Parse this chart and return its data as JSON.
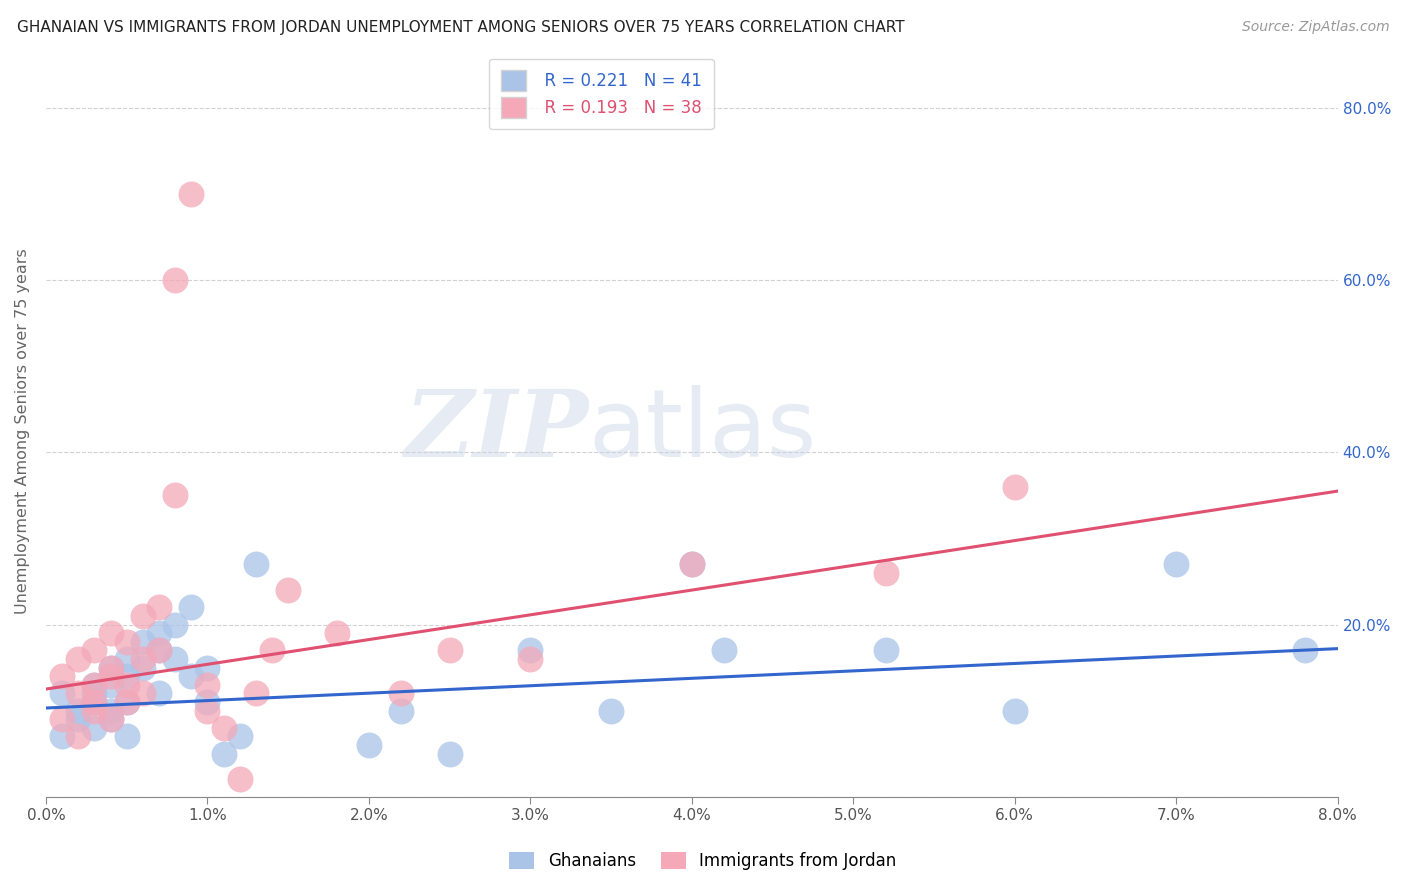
{
  "title": "GHANAIAN VS IMMIGRANTS FROM JORDAN UNEMPLOYMENT AMONG SENIORS OVER 75 YEARS CORRELATION CHART",
  "source": "Source: ZipAtlas.com",
  "ylabel": "Unemployment Among Seniors over 75 years",
  "x_min": 0.0,
  "x_max": 0.08,
  "y_min": 0.0,
  "y_max": 0.85,
  "x_ticks": [
    0.0,
    0.01,
    0.02,
    0.03,
    0.04,
    0.05,
    0.06,
    0.07,
    0.08
  ],
  "x_tick_labels": [
    "0.0%",
    "1.0%",
    "2.0%",
    "3.0%",
    "4.0%",
    "5.0%",
    "6.0%",
    "7.0%",
    "8.0%"
  ],
  "right_y_ticks": [
    0.2,
    0.4,
    0.6,
    0.8
  ],
  "right_y_tick_labels": [
    "20.0%",
    "40.0%",
    "60.0%",
    "80.0%"
  ],
  "ghanaian_color": "#aac4e8",
  "jordan_color": "#f4a8b8",
  "trendline_ghanaian": "#3366cc",
  "trendline_jordan": "#e05070",
  "legend_R_ghanaian": "R = 0.221",
  "legend_N_ghanaian": "N = 41",
  "legend_R_jordan": "R = 0.193",
  "legend_N_jordan": "N = 38",
  "watermark_zip": "ZIP",
  "watermark_atlas": "atlas",
  "background_color": "#ffffff",
  "ghanaian_x": [
    0.001,
    0.001,
    0.002,
    0.002,
    0.003,
    0.003,
    0.003,
    0.003,
    0.004,
    0.004,
    0.004,
    0.004,
    0.005,
    0.005,
    0.005,
    0.005,
    0.006,
    0.006,
    0.007,
    0.007,
    0.007,
    0.008,
    0.008,
    0.009,
    0.009,
    0.01,
    0.01,
    0.011,
    0.012,
    0.013,
    0.02,
    0.022,
    0.025,
    0.03,
    0.035,
    0.04,
    0.042,
    0.052,
    0.06,
    0.07,
    0.078
  ],
  "ghanaian_y": [
    0.07,
    0.12,
    0.1,
    0.09,
    0.13,
    0.11,
    0.08,
    0.12,
    0.1,
    0.15,
    0.13,
    0.09,
    0.16,
    0.14,
    0.11,
    0.07,
    0.18,
    0.15,
    0.17,
    0.19,
    0.12,
    0.2,
    0.16,
    0.14,
    0.22,
    0.15,
    0.11,
    0.05,
    0.07,
    0.27,
    0.06,
    0.1,
    0.05,
    0.17,
    0.1,
    0.27,
    0.17,
    0.17,
    0.1,
    0.27,
    0.17
  ],
  "jordan_x": [
    0.001,
    0.001,
    0.002,
    0.002,
    0.002,
    0.003,
    0.003,
    0.003,
    0.003,
    0.004,
    0.004,
    0.004,
    0.004,
    0.005,
    0.005,
    0.005,
    0.006,
    0.006,
    0.006,
    0.007,
    0.007,
    0.008,
    0.008,
    0.009,
    0.01,
    0.01,
    0.011,
    0.012,
    0.013,
    0.014,
    0.015,
    0.018,
    0.022,
    0.025,
    0.03,
    0.04,
    0.052,
    0.06
  ],
  "jordan_y": [
    0.09,
    0.14,
    0.12,
    0.07,
    0.16,
    0.13,
    0.11,
    0.17,
    0.1,
    0.15,
    0.19,
    0.14,
    0.09,
    0.18,
    0.13,
    0.11,
    0.21,
    0.16,
    0.12,
    0.22,
    0.17,
    0.35,
    0.6,
    0.7,
    0.13,
    0.1,
    0.08,
    0.02,
    0.12,
    0.17,
    0.24,
    0.19,
    0.12,
    0.17,
    0.16,
    0.27,
    0.26,
    0.36
  ],
  "trendline_ghanaian_x0": 0.0,
  "trendline_ghanaian_y0": 0.103,
  "trendline_ghanaian_x1": 0.08,
  "trendline_ghanaian_y1": 0.172,
  "trendline_jordan_x0": 0.0,
  "trendline_jordan_y0": 0.125,
  "trendline_jordan_x1": 0.08,
  "trendline_jordan_y1": 0.355
}
